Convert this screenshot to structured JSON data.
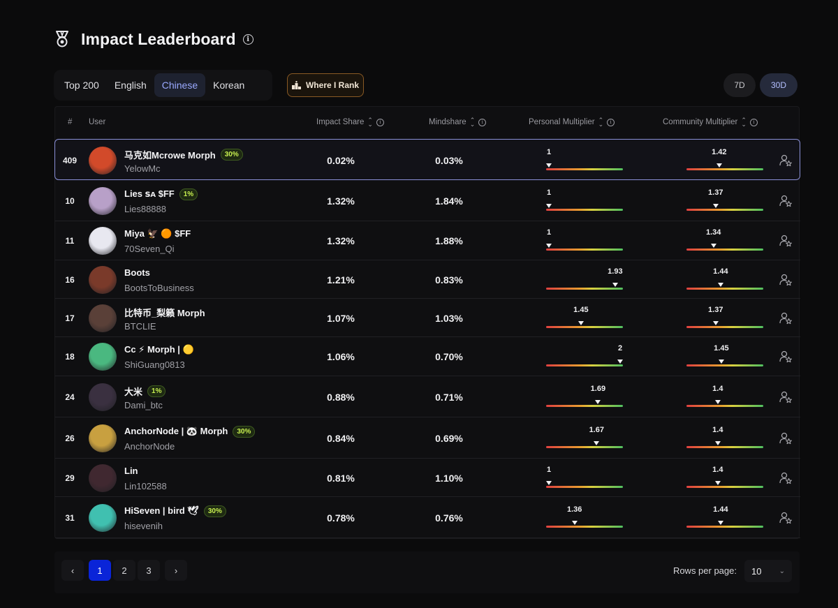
{
  "header": {
    "title": "Impact Leaderboard"
  },
  "tabs": [
    "Top 200",
    "English",
    "Chinese",
    "Korean"
  ],
  "active_tab": "Chinese",
  "where_rank_label": "Where I Rank",
  "periods": [
    "7D",
    "30D"
  ],
  "active_period": "30D",
  "columns": {
    "rank": "#",
    "user": "User",
    "impact": "Impact Share",
    "mindshare": "Mindshare",
    "personal": "Personal Multiplier",
    "community": "Community Multiplier"
  },
  "rows": [
    {
      "rank": "409",
      "name": "马克如Mcrowe Morph",
      "badge": "30%",
      "handle": "YelowMc",
      "impact": "0.02%",
      "mindshare": "0.03%",
      "personal": 1,
      "personal_label": "1",
      "community": 1.42,
      "community_label": "1.42",
      "mine": true
    },
    {
      "rank": "10",
      "name": "Lies ꜱᴀ $FF",
      "badge": "1%",
      "handle": "Lies88888",
      "impact": "1.32%",
      "mindshare": "1.84%",
      "personal": 1,
      "personal_label": "1",
      "community": 1.37,
      "community_label": "1.37"
    },
    {
      "rank": "11",
      "name": "Miya 🦅 🟠 $FF",
      "badge": "",
      "handle": "70Seven_Qi",
      "impact": "1.32%",
      "mindshare": "1.88%",
      "personal": 1,
      "personal_label": "1",
      "community": 1.34,
      "community_label": "1.34"
    },
    {
      "rank": "16",
      "name": "Boots",
      "badge": "",
      "handle": "BootsToBusiness",
      "impact": "1.21%",
      "mindshare": "0.83%",
      "personal": 1.93,
      "personal_label": "1.93",
      "community": 1.44,
      "community_label": "1.44"
    },
    {
      "rank": "17",
      "name": "比特币_梨籁 Morph",
      "badge": "",
      "handle": "BTCLIE",
      "impact": "1.07%",
      "mindshare": "1.03%",
      "personal": 1.45,
      "personal_label": "1.45",
      "community": 1.37,
      "community_label": "1.37"
    },
    {
      "rank": "18",
      "name": "Cc ⚡ Morph | 🟡",
      "badge": "",
      "handle": "ShiGuang0813",
      "impact": "1.06%",
      "mindshare": "0.70%",
      "personal": 2,
      "personal_label": "2",
      "community": 1.45,
      "community_label": "1.45"
    },
    {
      "rank": "24",
      "name": "大米",
      "badge": "1%",
      "handle": "Dami_btc",
      "impact": "0.88%",
      "mindshare": "0.71%",
      "personal": 1.69,
      "personal_label": "1.69",
      "community": 1.4,
      "community_label": "1.4"
    },
    {
      "rank": "26",
      "name": "AnchorNode | 🐼 Morph",
      "badge": "30%",
      "handle": "AnchorNode",
      "impact": "0.84%",
      "mindshare": "0.69%",
      "personal": 1.67,
      "personal_label": "1.67",
      "community": 1.4,
      "community_label": "1.4"
    },
    {
      "rank": "29",
      "name": "Lin",
      "badge": "",
      "handle": "Lin102588",
      "impact": "0.81%",
      "mindshare": "1.10%",
      "personal": 1,
      "personal_label": "1",
      "community": 1.4,
      "community_label": "1.4"
    },
    {
      "rank": "31",
      "name": "HiSeven | bird 🕊",
      "badge": "30%",
      "handle": "hisevenih",
      "impact": "0.78%",
      "mindshare": "0.76%",
      "personal": 1.36,
      "personal_label": "1.36",
      "community": 1.44,
      "community_label": "1.44"
    }
  ],
  "avatar_colors": [
    "#d24a2a",
    "#b8a0c8",
    "#e8e8f0",
    "#7a3a2a",
    "#5a4038",
    "#4ab880",
    "#3a3040",
    "#c8a040",
    "#402830",
    "#40c0b0"
  ],
  "pagination": {
    "pages": [
      "1",
      "2",
      "3"
    ],
    "current": "1",
    "prev": "‹",
    "next": "›"
  },
  "rows_per_page": {
    "label": "Rows per page:",
    "value": "10"
  },
  "multiplier_range": {
    "min": 1,
    "max": 2
  }
}
